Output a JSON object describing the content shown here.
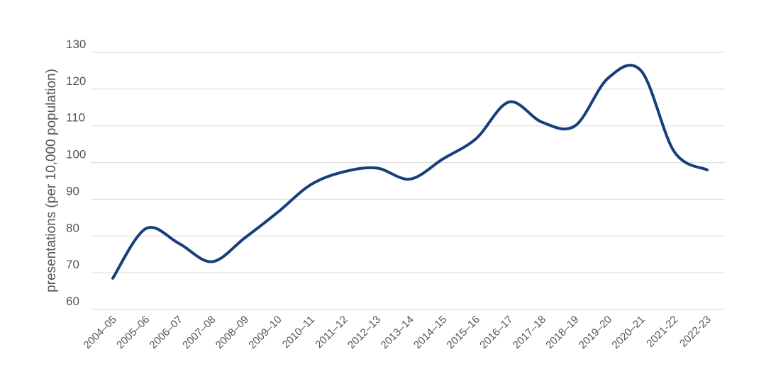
{
  "chart_data": {
    "type": "line",
    "title": "",
    "xlabel": "",
    "ylabel": "presentations (per 10,000 population)",
    "categories": [
      "2004–05",
      "2005–06",
      "2006–07",
      "2007–08",
      "2008–09",
      "2009–10",
      "2010–11",
      "2011–12",
      "2012–13",
      "2013–14",
      "2014–15",
      "2015–16",
      "2016–17",
      "2017–18",
      "2018–19",
      "2019–20",
      "2020–21",
      "2021-22",
      "2022-23"
    ],
    "series": [
      {
        "values": [
          68.5,
          82,
          78,
          73,
          79.5,
          86.5,
          94,
          97.5,
          98.5,
          95.5,
          101,
          106.5,
          116.5,
          111,
          110,
          123,
          125,
          103,
          98
        ],
        "color": "#173f7b"
      }
    ],
    "ylim": [
      60,
      130
    ],
    "yticks": [
      60,
      70,
      80,
      90,
      100,
      110,
      120,
      130
    ],
    "grid": true,
    "legend": "none"
  }
}
